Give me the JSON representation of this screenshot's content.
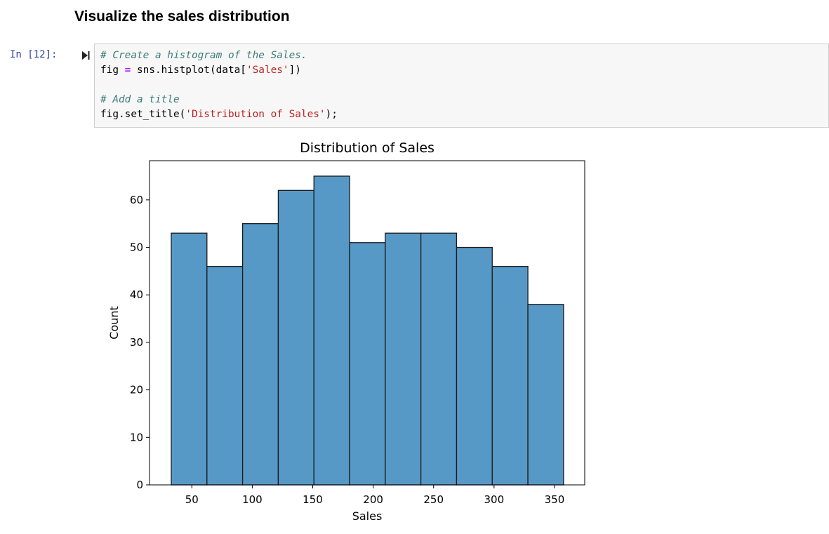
{
  "markdown": {
    "heading": "Visualize the sales distribution"
  },
  "cell": {
    "prompt": "In [12]:",
    "code": {
      "line1_comment": "# Create a histogram of the Sales.",
      "line2_a": "fig ",
      "line2_op": "=",
      "line2_b": " sns.histplot(data[",
      "line2_str": "'Sales'",
      "line2_c": "])",
      "line4_comment": "# Add a title",
      "line5_a": "fig.set_title(",
      "line5_str": "'Distribution of Sales'",
      "line5_b": ");"
    }
  },
  "colors": {
    "bar_fill": "#5799c6",
    "bar_edge": "#1a1a1a"
  },
  "chart_data": {
    "type": "bar",
    "title": "Distribution of Sales",
    "xlabel": "Sales",
    "ylabel": "Count",
    "xlim": [
      15,
      375
    ],
    "ylim": [
      0,
      68.25
    ],
    "xticks": [
      50,
      100,
      150,
      200,
      250,
      300,
      350
    ],
    "yticks": [
      0,
      10,
      20,
      30,
      40,
      50,
      60
    ],
    "bin_edges": [
      33,
      62.5,
      92,
      121.5,
      151,
      180.5,
      210,
      239.5,
      269,
      298.5,
      328,
      357.5
    ],
    "values": [
      53,
      46,
      55,
      62,
      65,
      51,
      53,
      53,
      50,
      46,
      38
    ],
    "grid": false
  }
}
